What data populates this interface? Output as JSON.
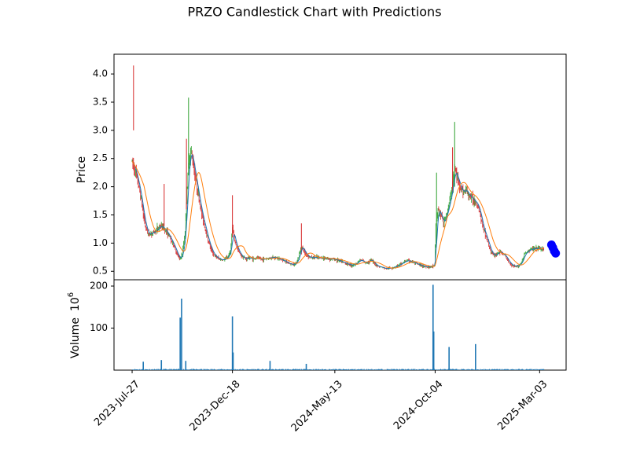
{
  "chart_data": {
    "type": "candlestick",
    "title": "PRZO Candlestick Chart with Predictions",
    "price_panel": {
      "ylabel": "Price",
      "ylim": [
        0.35,
        4.35
      ],
      "yticks": [
        0.5,
        1.0,
        1.5,
        2.0,
        2.5,
        3.0,
        3.5,
        4.0
      ],
      "ytick_labels": [
        "0.5",
        "1.0",
        "1.5",
        "2.0",
        "2.5",
        "3.0",
        "3.5",
        "4.0"
      ],
      "up_color": "#2ca02c",
      "down_color": "#d62728",
      "ma_short_color": "#1f77b4",
      "ma_long_color": "#ff7f0e",
      "close_series": [
        [
          "2023-07-27",
          2.45
        ],
        [
          "2023-07-31",
          2.3
        ],
        [
          "2023-08-04",
          2.1
        ],
        [
          "2023-08-08",
          1.85
        ],
        [
          "2023-08-12",
          1.5
        ],
        [
          "2023-08-16",
          1.25
        ],
        [
          "2023-08-20",
          1.15
        ],
        [
          "2023-08-24",
          1.18
        ],
        [
          "2023-08-28",
          1.2
        ],
        [
          "2023-09-01",
          1.25
        ],
        [
          "2023-09-05",
          1.3
        ],
        [
          "2023-09-09",
          1.28
        ],
        [
          "2023-09-13",
          1.22
        ],
        [
          "2023-09-17",
          1.15
        ],
        [
          "2023-09-21",
          1.05
        ],
        [
          "2023-09-25",
          0.95
        ],
        [
          "2023-09-29",
          0.82
        ],
        [
          "2023-10-03",
          0.72
        ],
        [
          "2023-10-07",
          0.8
        ],
        [
          "2023-10-11",
          1.2
        ],
        [
          "2023-10-14",
          2.0
        ],
        [
          "2023-10-17",
          2.55
        ],
        [
          "2023-10-20",
          2.6
        ],
        [
          "2023-10-24",
          2.3
        ],
        [
          "2023-10-28",
          2.0
        ],
        [
          "2023-11-01",
          1.7
        ],
        [
          "2023-11-05",
          1.45
        ],
        [
          "2023-11-09",
          1.25
        ],
        [
          "2023-11-13",
          1.05
        ],
        [
          "2023-11-17",
          0.9
        ],
        [
          "2023-11-21",
          0.8
        ],
        [
          "2023-11-25",
          0.75
        ],
        [
          "2023-11-29",
          0.72
        ],
        [
          "2023-12-03",
          0.7
        ],
        [
          "2023-12-07",
          0.71
        ],
        [
          "2023-12-11",
          0.75
        ],
        [
          "2023-12-15",
          0.85
        ],
        [
          "2023-12-18",
          1.25
        ],
        [
          "2023-12-21",
          1.05
        ],
        [
          "2023-12-25",
          0.9
        ],
        [
          "2023-12-29",
          0.8
        ],
        [
          "2024-01-02",
          0.75
        ],
        [
          "2024-01-06",
          0.72
        ],
        [
          "2024-01-10",
          0.74
        ],
        [
          "2024-01-14",
          0.73
        ],
        [
          "2024-01-18",
          0.72
        ],
        [
          "2024-01-22",
          0.74
        ],
        [
          "2024-01-26",
          0.72
        ],
        [
          "2024-01-30",
          0.71
        ],
        [
          "2024-02-03",
          0.72
        ],
        [
          "2024-02-07",
          0.73
        ],
        [
          "2024-02-11",
          0.74
        ],
        [
          "2024-02-15",
          0.75
        ],
        [
          "2024-02-19",
          0.74
        ],
        [
          "2024-02-23",
          0.72
        ],
        [
          "2024-02-27",
          0.7
        ],
        [
          "2024-03-02",
          0.68
        ],
        [
          "2024-03-06",
          0.65
        ],
        [
          "2024-03-10",
          0.63
        ],
        [
          "2024-03-14",
          0.62
        ],
        [
          "2024-03-18",
          0.64
        ],
        [
          "2024-03-22",
          0.75
        ],
        [
          "2024-03-26",
          0.95
        ],
        [
          "2024-03-30",
          0.85
        ],
        [
          "2024-04-03",
          0.78
        ],
        [
          "2024-04-07",
          0.75
        ],
        [
          "2024-04-11",
          0.74
        ],
        [
          "2024-04-15",
          0.75
        ],
        [
          "2024-04-19",
          0.74
        ],
        [
          "2024-04-23",
          0.74
        ],
        [
          "2024-04-27",
          0.73
        ],
        [
          "2024-05-01",
          0.73
        ],
        [
          "2024-05-05",
          0.72
        ],
        [
          "2024-05-09",
          0.72
        ],
        [
          "2024-05-13",
          0.71
        ],
        [
          "2024-05-17",
          0.7
        ],
        [
          "2024-05-21",
          0.68
        ],
        [
          "2024-05-25",
          0.66
        ],
        [
          "2024-05-29",
          0.64
        ],
        [
          "2024-06-02",
          0.62
        ],
        [
          "2024-06-06",
          0.61
        ],
        [
          "2024-06-10",
          0.62
        ],
        [
          "2024-06-14",
          0.65
        ],
        [
          "2024-06-18",
          0.7
        ],
        [
          "2024-06-22",
          0.68
        ],
        [
          "2024-06-26",
          0.65
        ],
        [
          "2024-06-30",
          0.67
        ],
        [
          "2024-07-04",
          0.7
        ],
        [
          "2024-07-08",
          0.65
        ],
        [
          "2024-07-12",
          0.6
        ],
        [
          "2024-07-16",
          0.58
        ],
        [
          "2024-07-20",
          0.57
        ],
        [
          "2024-07-24",
          0.55
        ],
        [
          "2024-07-28",
          0.55
        ],
        [
          "2024-08-01",
          0.56
        ],
        [
          "2024-08-05",
          0.57
        ],
        [
          "2024-08-09",
          0.59
        ],
        [
          "2024-08-13",
          0.61
        ],
        [
          "2024-08-17",
          0.64
        ],
        [
          "2024-08-21",
          0.67
        ],
        [
          "2024-08-25",
          0.69
        ],
        [
          "2024-08-29",
          0.68
        ],
        [
          "2024-09-02",
          0.66
        ],
        [
          "2024-09-06",
          0.64
        ],
        [
          "2024-09-10",
          0.62
        ],
        [
          "2024-09-14",
          0.6
        ],
        [
          "2024-09-18",
          0.59
        ],
        [
          "2024-09-22",
          0.58
        ],
        [
          "2024-09-26",
          0.58
        ],
        [
          "2024-09-30",
          0.59
        ],
        [
          "2024-10-03",
          0.6
        ],
        [
          "2024-10-05",
          1.3
        ],
        [
          "2024-10-08",
          1.6
        ],
        [
          "2024-10-12",
          1.5
        ],
        [
          "2024-10-16",
          1.35
        ],
        [
          "2024-10-20",
          1.5
        ],
        [
          "2024-10-24",
          1.7
        ],
        [
          "2024-10-28",
          1.95
        ],
        [
          "2024-11-01",
          2.3
        ],
        [
          "2024-11-05",
          2.15
        ],
        [
          "2024-11-09",
          2.0
        ],
        [
          "2024-11-13",
          1.9
        ],
        [
          "2024-11-17",
          1.95
        ],
        [
          "2024-11-21",
          1.85
        ],
        [
          "2024-11-25",
          1.8
        ],
        [
          "2024-11-29",
          1.75
        ],
        [
          "2024-12-03",
          1.7
        ],
        [
          "2024-12-07",
          1.55
        ],
        [
          "2024-12-11",
          1.3
        ],
        [
          "2024-12-15",
          1.15
        ],
        [
          "2024-12-19",
          1.0
        ],
        [
          "2024-12-23",
          0.85
        ],
        [
          "2024-12-27",
          0.78
        ],
        [
          "2024-12-31",
          0.8
        ],
        [
          "2025-01-04",
          0.85
        ],
        [
          "2025-01-08",
          0.82
        ],
        [
          "2025-01-12",
          0.78
        ],
        [
          "2025-01-16",
          0.7
        ],
        [
          "2025-01-20",
          0.63
        ],
        [
          "2025-01-24",
          0.6
        ],
        [
          "2025-01-28",
          0.59
        ],
        [
          "2025-02-01",
          0.6
        ],
        [
          "2025-02-05",
          0.66
        ],
        [
          "2025-02-09",
          0.8
        ],
        [
          "2025-02-13",
          0.85
        ],
        [
          "2025-02-17",
          0.88
        ],
        [
          "2025-02-21",
          0.9
        ],
        [
          "2025-02-25",
          0.9
        ],
        [
          "2025-03-01",
          0.91
        ],
        [
          "2025-03-05",
          0.9
        ],
        [
          "2025-03-09",
          0.88
        ]
      ],
      "predictions": [
        [
          "2025-03-20",
          0.97
        ],
        [
          "2025-03-22",
          0.92
        ],
        [
          "2025-03-24",
          0.86
        ],
        [
          "2025-03-26",
          0.82
        ]
      ],
      "prediction_color": "#0000ff"
    },
    "volume_panel": {
      "ylabel": "Volume",
      "ylabel_multiplier": "10",
      "ylabel_exponent": "6",
      "ylim": [
        0,
        215
      ],
      "yticks": [
        100,
        200
      ],
      "ytick_labels": [
        "100",
        "200"
      ],
      "bar_color": "#1f77b4",
      "spikes": [
        [
          "2023-08-12",
          20
        ],
        [
          "2023-09-07",
          24
        ],
        [
          "2023-10-04",
          125
        ],
        [
          "2023-10-06",
          170
        ],
        [
          "2023-10-12",
          22
        ],
        [
          "2023-12-18",
          128
        ],
        [
          "2023-12-19",
          42
        ],
        [
          "2024-02-10",
          22
        ],
        [
          "2024-04-02",
          15
        ],
        [
          "2024-10-01",
          203
        ],
        [
          "2024-10-02",
          92
        ],
        [
          "2024-10-24",
          55
        ],
        [
          "2024-12-01",
          62
        ]
      ]
    },
    "x_ticks": [
      "2023-Jul-27",
      "2023-Dec-18",
      "2024-May-13",
      "2024-Oct-04",
      "2025-Mar-03"
    ],
    "xlim": [
      "2023-07-01",
      "2025-04-10"
    ]
  }
}
